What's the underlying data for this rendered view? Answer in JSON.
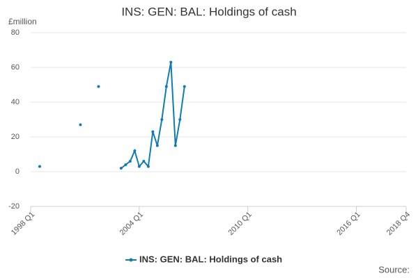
{
  "chart_data": {
    "type": "line",
    "title": "INS: GEN: BAL: Holdings of cash",
    "y_label": "£million",
    "source": "Source:",
    "x": [
      "1998 Q3",
      "1998 Q4",
      "1999 Q1",
      "1999 Q2",
      "1999 Q3",
      "1999 Q4",
      "2000 Q1",
      "2000 Q2",
      "2000 Q3",
      "2000 Q4",
      "2001 Q1",
      "2001 Q2",
      "2001 Q3",
      "2001 Q4",
      "2002 Q1",
      "2002 Q2",
      "2002 Q3",
      "2002 Q4",
      "2003 Q1",
      "2003 Q2",
      "2003 Q3",
      "2003 Q4",
      "2004 Q1",
      "2004 Q2",
      "2004 Q3",
      "2004 Q4",
      "2005 Q1",
      "2005 Q2",
      "2005 Q3",
      "2005 Q4",
      "2006 Q1",
      "2006 Q2",
      "2006 Q3"
    ],
    "series": [
      {
        "name": "INS: GEN: BAL: Holdings of cash",
        "color": "#0f7bb3",
        "values": [
          3,
          null,
          null,
          null,
          null,
          null,
          null,
          null,
          null,
          27,
          null,
          null,
          null,
          49,
          null,
          null,
          null,
          null,
          2,
          4,
          6,
          12,
          3,
          6,
          3,
          23,
          15,
          30,
          49,
          63,
          15,
          30,
          49
        ]
      }
    ],
    "xlim": [
      "1998 Q1",
      "2018 Q4"
    ],
    "xticks": [
      "1998 Q1",
      "2004 Q1",
      "2010 Q1",
      "2016 Q1",
      "2018 Q4"
    ],
    "ylim": [
      -20,
      80
    ],
    "yticks": [
      -20,
      0,
      20,
      40,
      60,
      80
    ],
    "grid": true
  }
}
